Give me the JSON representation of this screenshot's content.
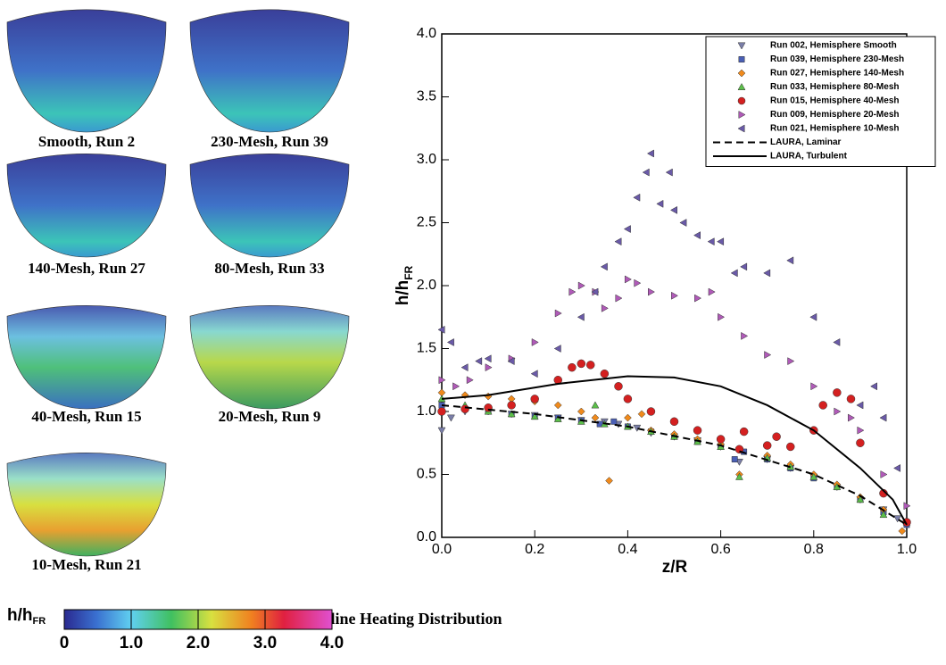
{
  "panels": [
    "Smooth, Run 2",
    "230-Mesh, Run 39",
    "140-Mesh, Run 27",
    "80-Mesh, Run 33",
    "40-Mesh, Run 15",
    "20-Mesh, Run 9",
    "10-Mesh, Run 21"
  ],
  "colorbar": {
    "label": "h/h",
    "label_sub": "FR",
    "lim": [
      0,
      4
    ],
    "ticks": [
      {
        "value": 0,
        "label": "0"
      },
      {
        "value": 1,
        "label": "1.0"
      },
      {
        "value": 2,
        "label": "2.0"
      },
      {
        "value": 3,
        "label": "3.0"
      },
      {
        "value": 4,
        "label": "4.0"
      }
    ]
  },
  "chart_data": {
    "type": "scatter",
    "title": "Centerline Heating Distribution",
    "xlabel": "z/R",
    "ylabel": "h/h",
    "ylabel_sub": "FR",
    "xlim": [
      0,
      1
    ],
    "ylim": [
      0,
      4
    ],
    "xticks": [
      {
        "value": 0,
        "label": "0.0"
      },
      {
        "value": 0.2,
        "label": "0.2"
      },
      {
        "value": 0.4,
        "label": "0.4"
      },
      {
        "value": 0.6,
        "label": "0.6"
      },
      {
        "value": 0.8,
        "label": "0.8"
      },
      {
        "value": 1,
        "label": "1.0"
      }
    ],
    "yticks": [
      {
        "value": 0,
        "label": "0.0"
      },
      {
        "value": 0.5,
        "label": "0.5"
      },
      {
        "value": 1,
        "label": "1.0"
      },
      {
        "value": 1.5,
        "label": "1.5"
      },
      {
        "value": 2,
        "label": "2.0"
      },
      {
        "value": 2.5,
        "label": "2.5"
      },
      {
        "value": 3,
        "label": "3.0"
      },
      {
        "value": 3.5,
        "label": "3.5"
      },
      {
        "value": 4,
        "label": "4.0"
      }
    ],
    "legend": "upper right",
    "series": [
      {
        "name": "Run 002, Hemisphere Smooth",
        "marker": "triangle-down",
        "color": "#7a7ea8",
        "x": [
          0,
          0.02,
          0.05,
          0.1,
          0.15,
          0.2,
          0.25,
          0.3,
          0.35,
          0.38,
          0.42,
          0.45,
          0.5,
          0.55,
          0.6,
          0.64,
          0.7,
          0.75,
          0.8,
          0.85,
          0.9,
          0.95,
          0.98,
          1.0
        ],
        "values": [
          0.85,
          0.95,
          1.0,
          1.0,
          0.98,
          0.97,
          0.95,
          0.93,
          0.92,
          0.9,
          0.87,
          0.83,
          0.8,
          0.77,
          0.72,
          0.6,
          0.62,
          0.55,
          0.48,
          0.4,
          0.3,
          0.22,
          0.15,
          0.1
        ]
      },
      {
        "name": "Run 039, Hemisphere 230-Mesh",
        "marker": "square",
        "color": "#4a5fb5",
        "x": [
          0,
          0.05,
          0.1,
          0.15,
          0.2,
          0.25,
          0.3,
          0.34,
          0.37,
          0.4,
          0.45,
          0.5,
          0.55,
          0.6,
          0.63,
          0.65,
          0.7,
          0.75,
          0.8,
          0.85,
          0.9,
          0.95,
          1.0
        ],
        "values": [
          1.05,
          1.02,
          1.0,
          0.98,
          0.96,
          0.95,
          0.93,
          0.9,
          0.92,
          0.88,
          0.84,
          0.8,
          0.76,
          0.72,
          0.62,
          0.68,
          0.62,
          0.55,
          0.47,
          0.4,
          0.3,
          0.2,
          0.1
        ]
      },
      {
        "name": "Run 027, Hemisphere 140-Mesh",
        "marker": "diamond",
        "color": "#f08a1c",
        "x": [
          0,
          0.05,
          0.1,
          0.15,
          0.2,
          0.25,
          0.3,
          0.33,
          0.36,
          0.4,
          0.43,
          0.45,
          0.5,
          0.55,
          0.6,
          0.64,
          0.7,
          0.75,
          0.8,
          0.85,
          0.9,
          0.95,
          0.99
        ],
        "values": [
          1.15,
          1.13,
          1.12,
          1.1,
          1.08,
          1.05,
          1.0,
          0.95,
          0.45,
          0.95,
          0.98,
          0.85,
          0.82,
          0.78,
          0.74,
          0.5,
          0.65,
          0.58,
          0.5,
          0.42,
          0.32,
          0.22,
          0.05
        ]
      },
      {
        "name": "Run 033, Hemisphere 80-Mesh",
        "marker": "triangle-up",
        "color": "#5cbf4a",
        "x": [
          0,
          0.05,
          0.1,
          0.15,
          0.2,
          0.25,
          0.3,
          0.33,
          0.35,
          0.4,
          0.45,
          0.5,
          0.55,
          0.6,
          0.64,
          0.7,
          0.75,
          0.8,
          0.85,
          0.9,
          0.95,
          1.0
        ],
        "values": [
          1.1,
          1.05,
          1.0,
          0.98,
          0.96,
          0.94,
          0.92,
          1.05,
          0.9,
          0.88,
          0.84,
          0.8,
          0.76,
          0.72,
          0.48,
          0.63,
          0.56,
          0.48,
          0.4,
          0.3,
          0.18,
          0.12
        ]
      },
      {
        "name": "Run 015, Hemisphere 40-Mesh",
        "marker": "circle",
        "color": "#d42020",
        "x": [
          0,
          0.05,
          0.1,
          0.15,
          0.2,
          0.25,
          0.28,
          0.3,
          0.32,
          0.35,
          0.38,
          0.4,
          0.45,
          0.5,
          0.55,
          0.6,
          0.64,
          0.65,
          0.7,
          0.72,
          0.75,
          0.8,
          0.82,
          0.85,
          0.88,
          0.9,
          0.95,
          1.0
        ],
        "values": [
          1.0,
          1.02,
          1.03,
          1.05,
          1.1,
          1.25,
          1.35,
          1.38,
          1.37,
          1.3,
          1.2,
          1.1,
          1.0,
          0.92,
          0.85,
          0.78,
          0.7,
          0.84,
          0.73,
          0.8,
          0.72,
          0.85,
          1.05,
          1.15,
          1.1,
          0.75,
          0.35,
          0.12
        ]
      },
      {
        "name": "Run 009, Hemisphere 20-Mesh",
        "marker": "triangle-right",
        "color": "#b05ab8",
        "x": [
          0,
          0.03,
          0.06,
          0.1,
          0.15,
          0.2,
          0.25,
          0.28,
          0.3,
          0.33,
          0.35,
          0.38,
          0.4,
          0.42,
          0.45,
          0.5,
          0.55,
          0.58,
          0.6,
          0.65,
          0.7,
          0.75,
          0.8,
          0.85,
          0.88,
          0.9,
          0.95,
          1.0
        ],
        "values": [
          1.25,
          1.2,
          1.25,
          1.35,
          1.42,
          1.55,
          1.78,
          1.95,
          2.0,
          1.95,
          1.82,
          1.9,
          2.05,
          2.02,
          1.95,
          1.92,
          1.9,
          1.95,
          1.75,
          1.6,
          1.45,
          1.4,
          1.2,
          1.0,
          0.95,
          0.85,
          0.5,
          0.25
        ]
      },
      {
        "name": "Run 021, Hemisphere 10-Mesh",
        "marker": "triangle-left",
        "color": "#6a5aa8",
        "x": [
          0,
          0.02,
          0.05,
          0.08,
          0.1,
          0.15,
          0.2,
          0.25,
          0.3,
          0.33,
          0.35,
          0.38,
          0.4,
          0.42,
          0.44,
          0.45,
          0.47,
          0.49,
          0.5,
          0.52,
          0.55,
          0.58,
          0.6,
          0.63,
          0.65,
          0.7,
          0.75,
          0.8,
          0.85,
          0.9,
          0.93,
          0.95,
          0.98
        ],
        "values": [
          1.65,
          1.55,
          1.35,
          1.4,
          1.42,
          1.4,
          1.3,
          1.5,
          1.75,
          1.95,
          2.15,
          2.35,
          2.45,
          2.7,
          2.9,
          3.05,
          2.65,
          2.9,
          2.6,
          2.5,
          2.4,
          2.35,
          2.35,
          2.1,
          2.15,
          2.1,
          2.2,
          1.75,
          1.55,
          1.05,
          1.2,
          0.95,
          0.55
        ]
      },
      {
        "name": "LAURA, Laminar",
        "line": "dashed",
        "color": "#000000",
        "x": [
          0,
          0.2,
          0.4,
          0.6,
          0.8,
          0.9,
          1.0
        ],
        "values": [
          1.05,
          0.98,
          0.88,
          0.73,
          0.5,
          0.33,
          0.1
        ]
      },
      {
        "name": "LAURA, Turbulent",
        "line": "solid",
        "color": "#000000",
        "x": [
          0,
          0.1,
          0.25,
          0.4,
          0.5,
          0.6,
          0.7,
          0.8,
          0.9,
          0.97,
          1.0
        ],
        "values": [
          1.1,
          1.13,
          1.22,
          1.28,
          1.27,
          1.2,
          1.05,
          0.85,
          0.55,
          0.3,
          0.1
        ]
      }
    ]
  }
}
